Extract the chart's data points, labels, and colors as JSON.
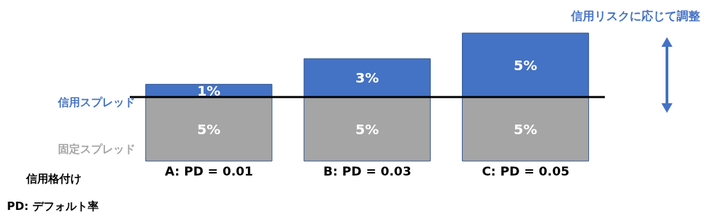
{
  "chart_data": {
    "type": "bar",
    "stacked": true,
    "xlabel": "信用格付け",
    "categories": [
      "A: PD = 0.01",
      "B: PD = 0.03",
      "C: PD = 0.05"
    ],
    "series": [
      {
        "name": "固定スプレッド",
        "color": "#a5a5a5",
        "values": [
          5,
          5,
          5
        ],
        "value_labels": [
          "5%",
          "5%",
          "5%"
        ]
      },
      {
        "name": "信用スプレッド",
        "color": "#4472c4",
        "values": [
          1,
          3,
          5
        ],
        "value_labels": [
          "1%",
          "3%",
          "5%"
        ]
      }
    ],
    "ref_lines": [
      {
        "axis": "y",
        "value": 5,
        "color": "#000000"
      }
    ],
    "annotations": [
      "信用リスクに応じて調整",
      "PD: デフォルト率"
    ]
  }
}
